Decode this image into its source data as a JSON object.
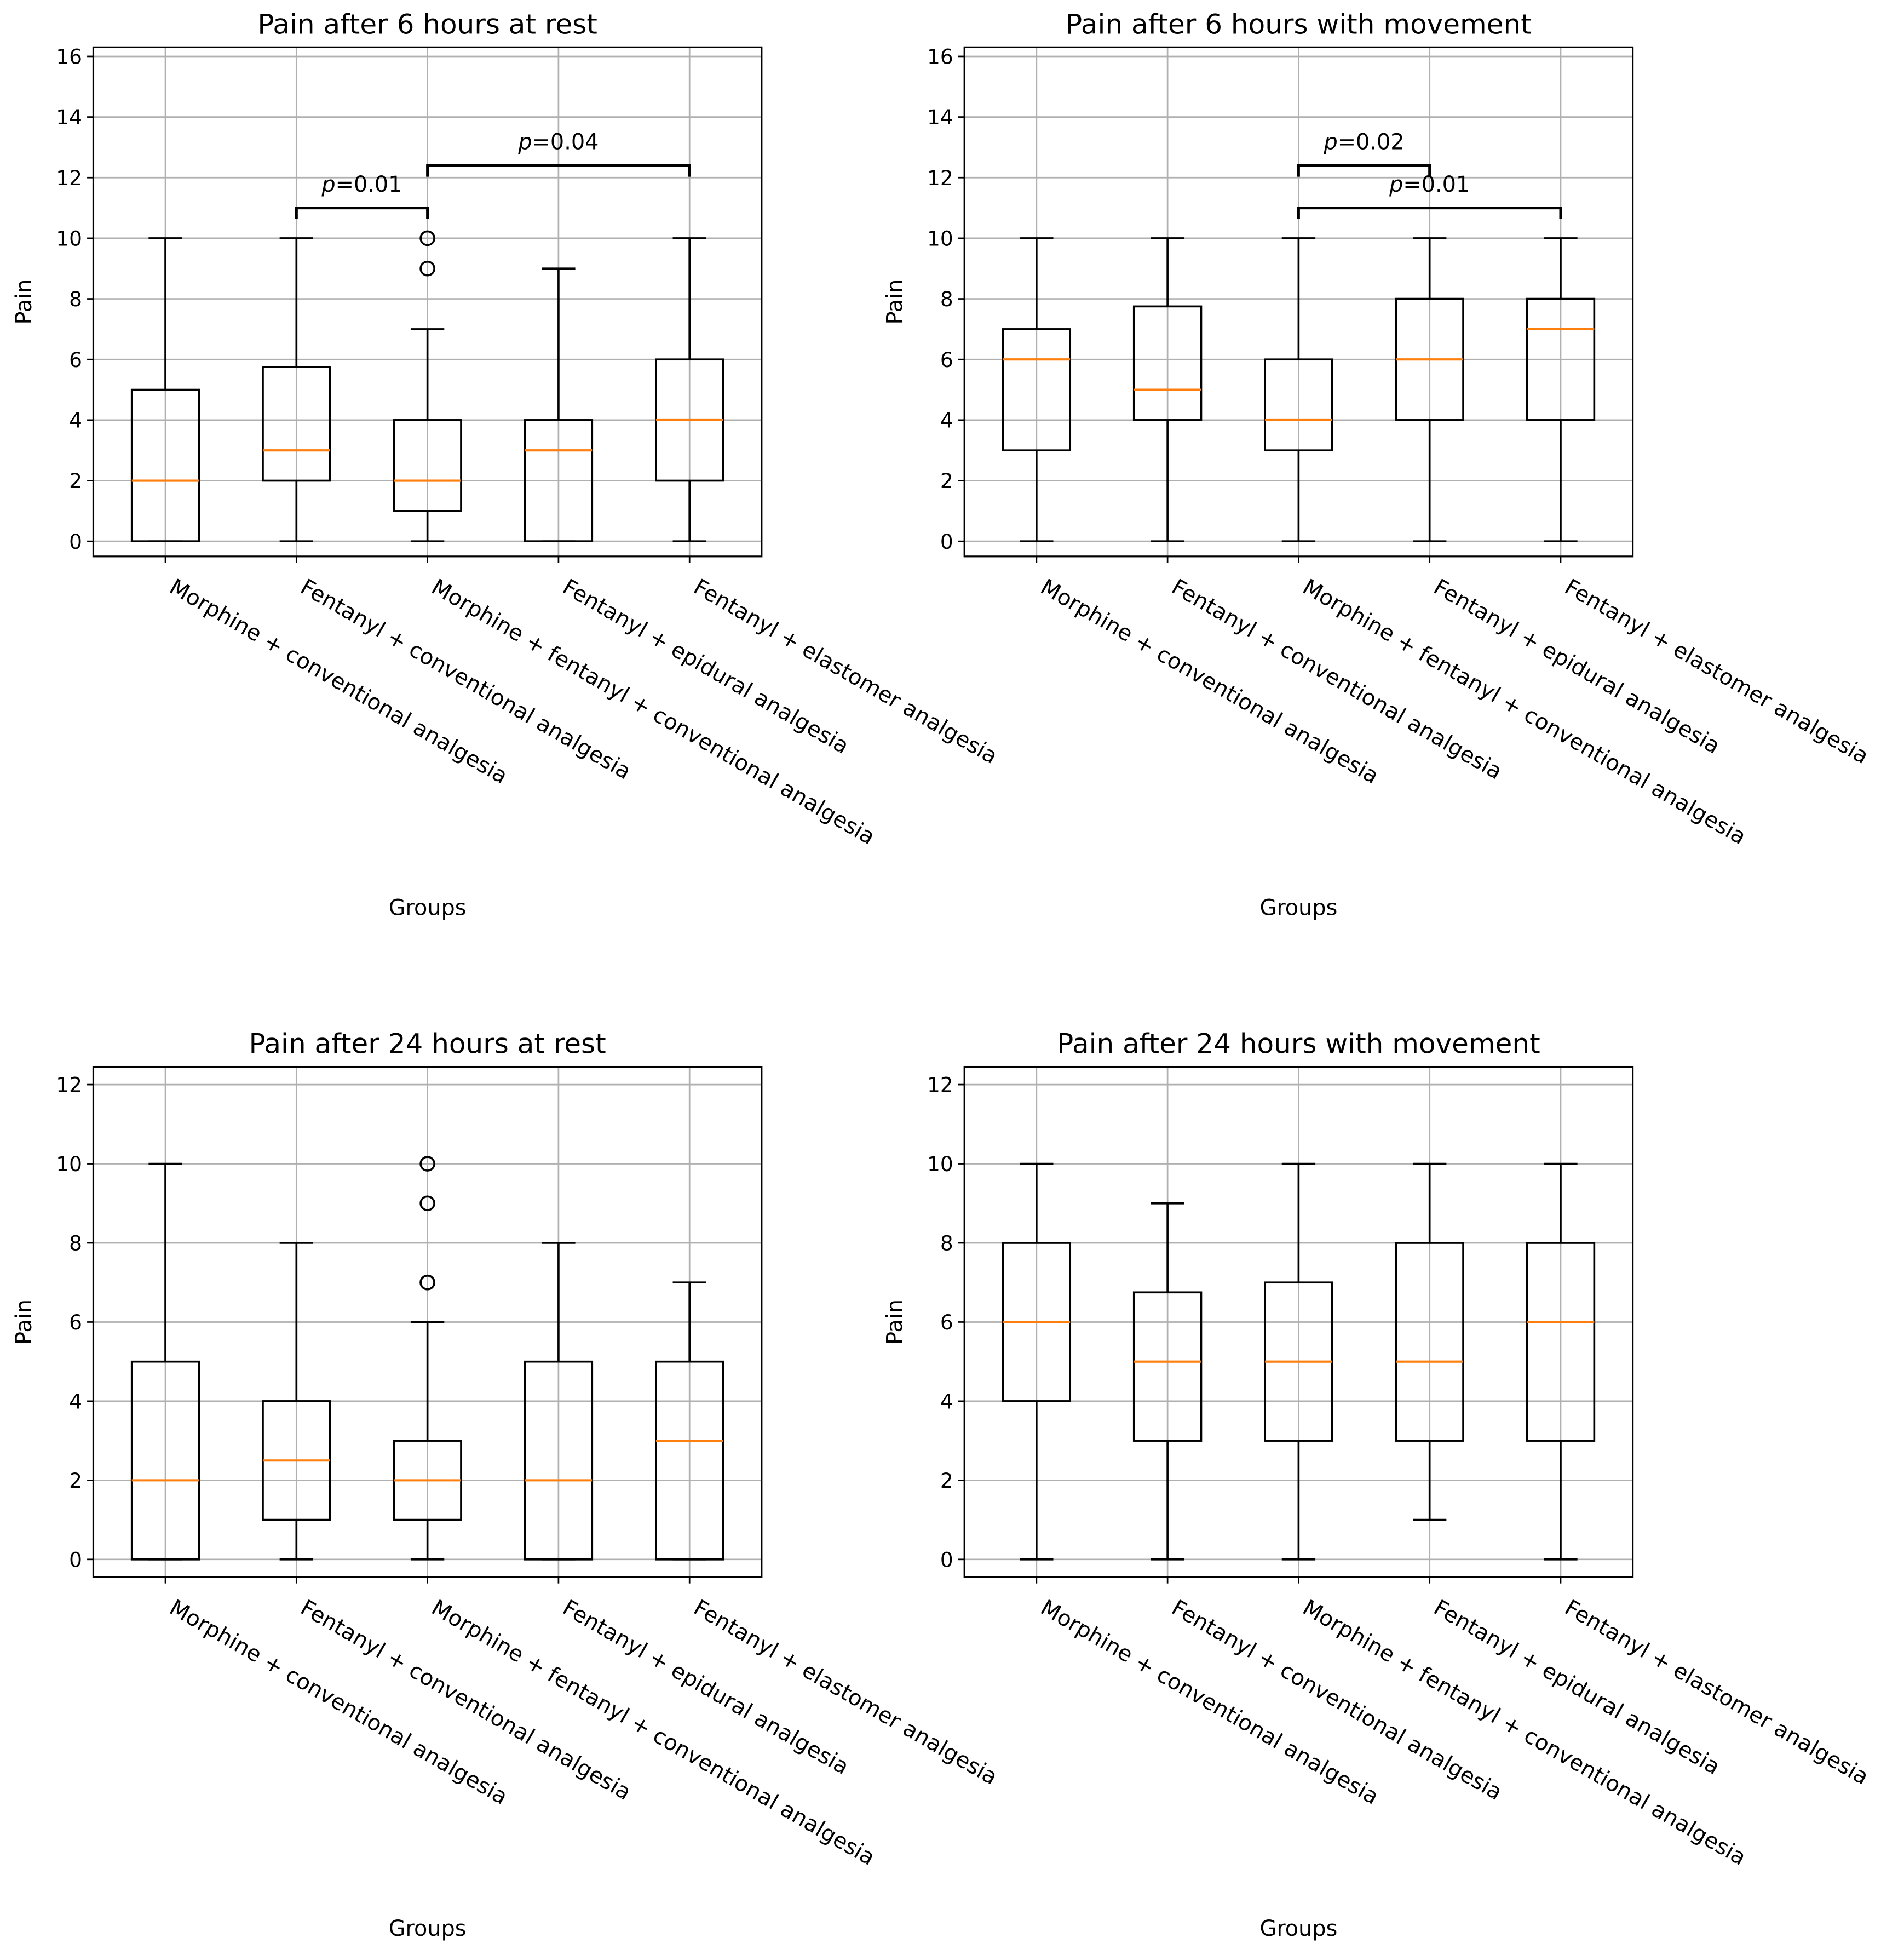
{
  "chart_data": [
    {
      "type": "boxplot",
      "title": "Pain after 6 hours at rest",
      "xlabel": "Groups",
      "ylabel": "Pain",
      "ylim": [
        -0.5,
        16.3
      ],
      "yticks": [
        0,
        2,
        4,
        6,
        8,
        10,
        12,
        14,
        16
      ],
      "grid": true,
      "categories": [
        "Morphine + conventional analgesia",
        "Fentanyl + conventional analgesia",
        "Morphine + fentanyl + conventional analgesia",
        "Fentanyl + epidural analgesia",
        "Fentanyl + elastomer analgesia"
      ],
      "boxes": [
        {
          "whislo": 0,
          "q1": 0,
          "med": 2,
          "q3": 5,
          "whishi": 10,
          "fliers": []
        },
        {
          "whislo": 0,
          "q1": 2,
          "med": 3,
          "q3": 5.75,
          "whishi": 10,
          "fliers": []
        },
        {
          "whislo": 0,
          "q1": 1,
          "med": 2,
          "q3": 4,
          "whishi": 7,
          "fliers": [
            9,
            10
          ]
        },
        {
          "whislo": 0,
          "q1": 0,
          "med": 3,
          "q3": 4,
          "whishi": 9,
          "fliers": []
        },
        {
          "whislo": 0,
          "q1": 2,
          "med": 4,
          "q3": 6,
          "whishi": 10,
          "fliers": []
        }
      ],
      "annotations": [
        {
          "from": 1,
          "to": 2,
          "y": 11.0,
          "p_symbol": "p",
          "p_value": "=0.01"
        },
        {
          "from": 2,
          "to": 4,
          "y": 12.4,
          "p_symbol": "p",
          "p_value": "=0.04"
        }
      ]
    },
    {
      "type": "boxplot",
      "title": "Pain after 6 hours with movement",
      "xlabel": "Groups",
      "ylabel": "Pain",
      "ylim": [
        -0.5,
        16.3
      ],
      "yticks": [
        0,
        2,
        4,
        6,
        8,
        10,
        12,
        14,
        16
      ],
      "grid": true,
      "categories": [
        "Morphine + conventional analgesia",
        "Fentanyl + conventional analgesia",
        "Morphine + fentanyl + conventional analgesia",
        "Fentanyl + epidural analgesia",
        "Fentanyl + elastomer analgesia"
      ],
      "boxes": [
        {
          "whislo": 0,
          "q1": 3,
          "med": 6,
          "q3": 7,
          "whishi": 10,
          "fliers": []
        },
        {
          "whislo": 0,
          "q1": 4,
          "med": 5,
          "q3": 7.75,
          "whishi": 10,
          "fliers": []
        },
        {
          "whislo": 0,
          "q1": 3,
          "med": 4,
          "q3": 6,
          "whishi": 10,
          "fliers": []
        },
        {
          "whislo": 0,
          "q1": 4,
          "med": 6,
          "q3": 8,
          "whishi": 10,
          "fliers": []
        },
        {
          "whislo": 0,
          "q1": 4,
          "med": 7,
          "q3": 8,
          "whishi": 10,
          "fliers": []
        }
      ],
      "annotations": [
        {
          "from": 2,
          "to": 3,
          "y": 12.4,
          "p_symbol": "p",
          "p_value": "=0.02"
        },
        {
          "from": 2,
          "to": 4,
          "y": 11.0,
          "p_symbol": "p",
          "p_value": "=0.01"
        }
      ]
    },
    {
      "type": "boxplot",
      "title": "Pain after 24 hours at rest",
      "xlabel": "Groups",
      "ylabel": "Pain",
      "ylim": [
        -0.45,
        12.45
      ],
      "yticks": [
        0,
        2,
        4,
        6,
        8,
        10,
        12
      ],
      "grid": true,
      "categories": [
        "Morphine + conventional analgesia",
        "Fentanyl + conventional analgesia",
        "Morphine + fentanyl + conventional analgesia",
        "Fentanyl + epidural analgesia",
        "Fentanyl + elastomer analgesia"
      ],
      "boxes": [
        {
          "whislo": 0,
          "q1": 0,
          "med": 2,
          "q3": 5,
          "whishi": 10,
          "fliers": []
        },
        {
          "whislo": 0,
          "q1": 1,
          "med": 2.5,
          "q3": 4,
          "whishi": 8,
          "fliers": []
        },
        {
          "whislo": 0,
          "q1": 1,
          "med": 2,
          "q3": 3,
          "whishi": 6,
          "fliers": [
            7,
            7,
            9,
            10
          ]
        },
        {
          "whislo": 0,
          "q1": 0,
          "med": 2,
          "q3": 5,
          "whishi": 8,
          "fliers": []
        },
        {
          "whislo": 0,
          "q1": 0,
          "med": 3,
          "q3": 5,
          "whishi": 7,
          "fliers": []
        }
      ],
      "annotations": []
    },
    {
      "type": "boxplot",
      "title": "Pain after 24 hours with movement",
      "xlabel": "Groups",
      "ylabel": "Pain",
      "ylim": [
        -0.45,
        12.45
      ],
      "yticks": [
        0,
        2,
        4,
        6,
        8,
        10,
        12
      ],
      "grid": true,
      "categories": [
        "Morphine + conventional analgesia",
        "Fentanyl + conventional analgesia",
        "Morphine + fentanyl + conventional analgesia",
        "Fentanyl + epidural analgesia",
        "Fentanyl + elastomer analgesia"
      ],
      "boxes": [
        {
          "whislo": 0,
          "q1": 4,
          "med": 6,
          "q3": 8,
          "whishi": 10,
          "fliers": []
        },
        {
          "whislo": 0,
          "q1": 3,
          "med": 5,
          "q3": 6.75,
          "whishi": 9,
          "fliers": []
        },
        {
          "whislo": 0,
          "q1": 3,
          "med": 5,
          "q3": 7,
          "whishi": 10,
          "fliers": []
        },
        {
          "whislo": 1,
          "q1": 3,
          "med": 5,
          "q3": 8,
          "whishi": 10,
          "fliers": []
        },
        {
          "whislo": 0,
          "q1": 3,
          "med": 6,
          "q3": 8,
          "whishi": 10,
          "fliers": []
        }
      ],
      "annotations": []
    }
  ],
  "colors": {
    "box": "#000000",
    "median": "#ff7f0e",
    "grid": "#b0b0b0",
    "background": "#ffffff"
  }
}
